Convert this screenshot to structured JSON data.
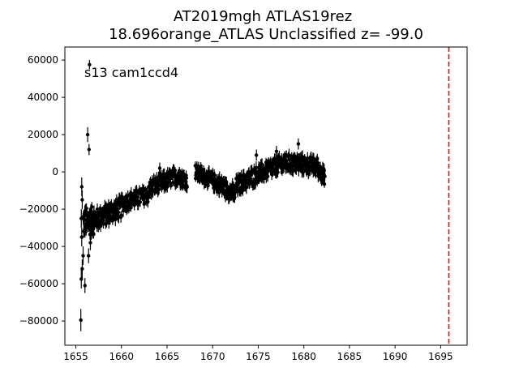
{
  "chart_data": {
    "type": "scatter",
    "title": "AT2019mgh  ATLAS19rez",
    "subtitle": "18.696orange_ATLAS Unclassified z= -99.0",
    "annotation": "s13 cam1ccd4",
    "xlabel": "",
    "ylabel": "",
    "xlim": [
      1653.8,
      1697.9
    ],
    "ylim": [
      -93000,
      67000
    ],
    "grid": false,
    "x_ticks": [
      1655,
      1660,
      1665,
      1670,
      1675,
      1680,
      1685,
      1690,
      1695
    ],
    "y_ticks": [
      -80000,
      -60000,
      -40000,
      -20000,
      0,
      20000,
      40000,
      60000
    ],
    "y_tick_labels": [
      "−80000",
      "−60000",
      "−40000",
      "−20000",
      "0",
      "20000",
      "40000",
      "60000"
    ],
    "vline": {
      "x": 1695.9,
      "color": "#ff0000",
      "style": "dashed"
    },
    "point_color": "#000000",
    "points": [
      {
        "x": 1655.55,
        "y": -79500,
        "err": 6000
      },
      {
        "x": 1655.6,
        "y": -57500,
        "err": 5000
      },
      {
        "x": 1655.7,
        "y": -52000,
        "err": 5000
      },
      {
        "x": 1655.8,
        "y": -45000,
        "err": 5000
      },
      {
        "x": 1656.0,
        "y": -61000,
        "err": 4000
      },
      {
        "x": 1655.65,
        "y": -35000,
        "err": 5000
      },
      {
        "x": 1655.6,
        "y": -25000,
        "err": 5000
      },
      {
        "x": 1655.7,
        "y": -15000,
        "err": 5000
      },
      {
        "x": 1655.65,
        "y": -8000,
        "err": 5000
      },
      {
        "x": 1656.3,
        "y": 20000,
        "err": 4000
      },
      {
        "x": 1656.45,
        "y": 12000,
        "err": 3000
      },
      {
        "x": 1656.5,
        "y": 57500,
        "err": 2500
      },
      {
        "x": 1656.4,
        "y": -45000,
        "err": 4000
      },
      {
        "x": 1656.6,
        "y": -38000,
        "err": 4000
      },
      {
        "x": 1679.4,
        "y": 15000,
        "err": 3000
      },
      {
        "x": 1677.0,
        "y": 11000,
        "err": 3000
      },
      {
        "x": 1664.2,
        "y": 2000,
        "err": 3000
      },
      {
        "x": 1674.8,
        "y": 9000,
        "err": 3000
      }
    ],
    "segments": [
      {
        "x0": 1655.8,
        "x1": 1657.0,
        "y0": -27000,
        "y1": -26000,
        "spread": 7500,
        "n": 60
      },
      {
        "x0": 1657.0,
        "x1": 1660.0,
        "y0": -26000,
        "y1": -19000,
        "spread": 5500,
        "n": 110
      },
      {
        "x0": 1660.0,
        "x1": 1663.0,
        "y0": -17000,
        "y1": -12000,
        "spread": 4500,
        "n": 90
      },
      {
        "x0": 1663.0,
        "x1": 1666.2,
        "y0": -9000,
        "y1": -2000,
        "spread": 4500,
        "n": 100
      },
      {
        "x0": 1666.2,
        "x1": 1667.2,
        "y0": -2000,
        "y1": -5000,
        "spread": 4000,
        "n": 40
      },
      {
        "x0": 1668.1,
        "x1": 1670.5,
        "y0": 0,
        "y1": -6000,
        "spread": 4000,
        "n": 80
      },
      {
        "x0": 1670.5,
        "x1": 1672.5,
        "y0": -6000,
        "y1": -12000,
        "spread": 4500,
        "n": 70
      },
      {
        "x0": 1672.5,
        "x1": 1675.0,
        "y0": -8000,
        "y1": -1000,
        "spread": 4500,
        "n": 90
      },
      {
        "x0": 1675.0,
        "x1": 1678.0,
        "y0": -1000,
        "y1": 5000,
        "spread": 4500,
        "n": 110
      },
      {
        "x0": 1678.0,
        "x1": 1681.5,
        "y0": 5000,
        "y1": 3000,
        "spread": 4500,
        "n": 120
      },
      {
        "x0": 1681.5,
        "x1": 1682.3,
        "y0": 2000,
        "y1": -3000,
        "spread": 4000,
        "n": 35
      }
    ]
  }
}
